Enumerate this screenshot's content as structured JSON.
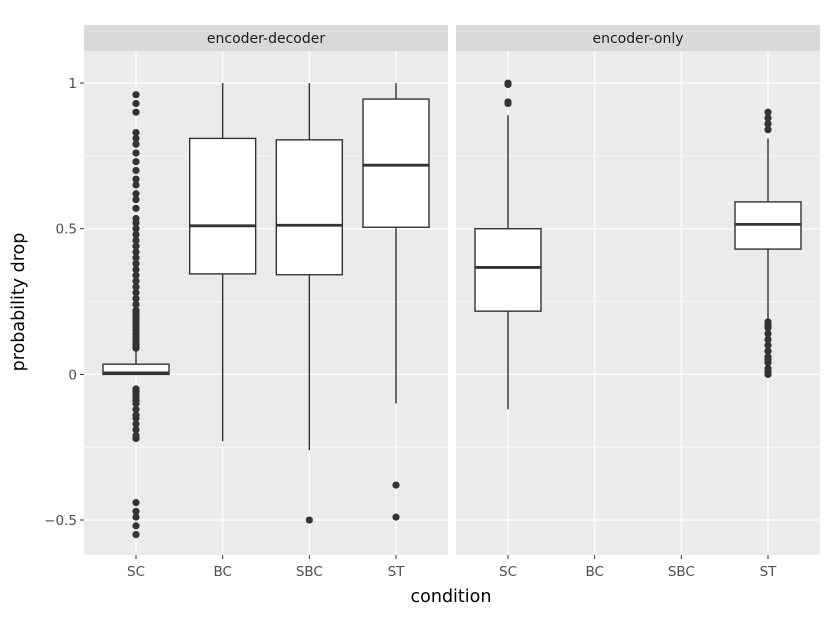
{
  "chart_data": {
    "type": "boxplot",
    "title": "",
    "xlabel": "condition",
    "ylabel": "probability drop",
    "ylim": [
      -0.62,
      1.11
    ],
    "yticks": [
      -0.5,
      0,
      0.5,
      1
    ],
    "ytick_labels": [
      "−0.5",
      "0",
      "0.5",
      "1"
    ],
    "categories": [
      "SC",
      "BC",
      "SBC",
      "ST"
    ],
    "grid": true,
    "legend": "none",
    "colors": {
      "panel_bg": "#ebebeb",
      "strip_bg": "#d9d9d9",
      "grid_major": "#ffffff",
      "box_fill": "#ffffff",
      "line": "#333333"
    },
    "facets": [
      {
        "label": "encoder-decoder",
        "boxes": [
          {
            "category": "SC",
            "whisker_low": 0,
            "q1": 0.0,
            "median": 0.005,
            "q3": 0.035,
            "whisker_high": 0.08,
            "outliers": [
              0.09,
              0.1,
              0.11,
              0.12,
              0.13,
              0.14,
              0.15,
              0.16,
              0.17,
              0.18,
              0.19,
              0.2,
              0.21,
              0.22,
              0.24,
              0.26,
              0.28,
              0.3,
              0.32,
              0.34,
              0.36,
              0.38,
              0.4,
              0.42,
              0.44,
              0.46,
              0.48,
              0.5,
              0.52,
              0.535,
              0.57,
              0.6,
              0.62,
              0.65,
              0.67,
              0.7,
              0.73,
              0.76,
              0.79,
              0.81,
              0.83,
              0.9,
              0.93,
              0.96,
              -0.05,
              -0.06,
              -0.07,
              -0.08,
              -0.09,
              -0.1,
              -0.12,
              -0.14,
              -0.15,
              -0.17,
              -0.19,
              -0.21,
              -0.22,
              -0.44,
              -0.47,
              -0.49,
              -0.52,
              -0.55
            ]
          },
          {
            "category": "BC",
            "whisker_low": -0.23,
            "q1": 0.345,
            "median": 0.51,
            "q3": 0.81,
            "whisker_high": 1.0,
            "outliers": []
          },
          {
            "category": "SBC",
            "whisker_low": -0.26,
            "q1": 0.342,
            "median": 0.512,
            "q3": 0.805,
            "whisker_high": 1.0,
            "outliers": [
              -0.5
            ]
          },
          {
            "category": "ST",
            "whisker_low": -0.1,
            "q1": 0.505,
            "median": 0.718,
            "q3": 0.945,
            "whisker_high": 1.0,
            "outliers": [
              -0.38,
              -0.49
            ]
          }
        ]
      },
      {
        "label": "encoder-only",
        "boxes": [
          {
            "category": "SC",
            "whisker_low": -0.12,
            "q1": 0.217,
            "median": 0.367,
            "q3": 0.5,
            "whisker_high": 0.89,
            "outliers": [
              0.93,
              0.935,
              0.995,
              1.0
            ]
          },
          {
            "category": "ST",
            "whisker_low": 0.19,
            "q1": 0.43,
            "median": 0.515,
            "q3": 0.592,
            "whisker_high": 0.81,
            "outliers": [
              0.9,
              0.88,
              0.86,
              0.84,
              0.18,
              0.17,
              0.16,
              0.14,
              0.12,
              0.1,
              0.08,
              0.06,
              0.05,
              0.04,
              0.02,
              0.01,
              0.0
            ]
          }
        ]
      }
    ]
  }
}
